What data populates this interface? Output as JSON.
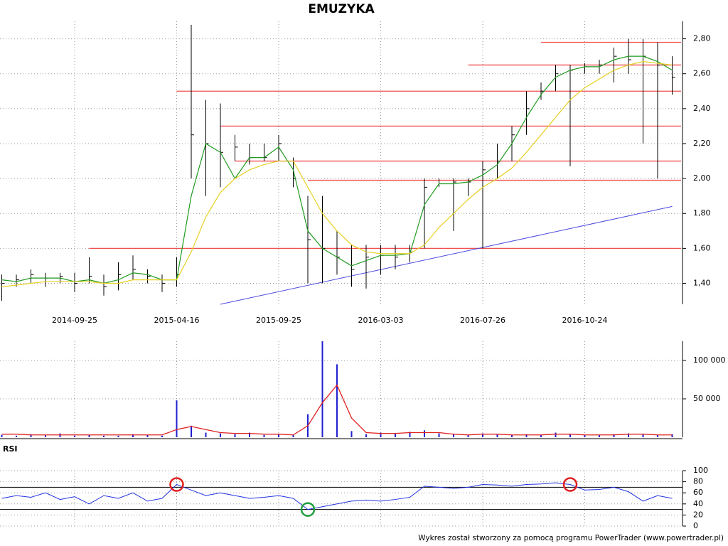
{
  "chart_data": [
    {
      "type": "ohlc",
      "title": "EMUZYKA",
      "x": [
        "2014-04-24",
        "2014-05-22",
        "2014-06-20",
        "2014-07-21",
        "2014-08-22",
        "2014-09-25",
        "2014-10-23",
        "2014-11-21",
        "2014-12-19",
        "2015-01-22",
        "2015-02-19",
        "2015-03-19",
        "2015-04-16",
        "2015-05-08",
        "2015-06-01",
        "2015-06-23",
        "2015-07-15",
        "2015-08-06",
        "2015-08-31",
        "2015-09-25",
        "2015-10-16",
        "2015-11-06",
        "2015-11-27",
        "2015-12-18",
        "2016-01-14",
        "2016-02-09",
        "2016-03-03",
        "2016-03-24",
        "2016-04-14",
        "2016-05-05",
        "2016-05-26",
        "2016-06-16",
        "2016-07-06",
        "2016-07-26",
        "2016-08-08",
        "2016-08-22",
        "2016-09-02",
        "2016-09-15",
        "2016-09-28",
        "2016-10-11",
        "2016-10-24",
        "2016-11-07",
        "2016-11-18",
        "2016-12-01",
        "2016-12-13",
        "2016-12-23",
        "2017-01-05"
      ],
      "high": [
        1.45,
        1.45,
        1.48,
        1.46,
        1.46,
        1.46,
        1.55,
        1.45,
        1.52,
        1.56,
        1.48,
        1.45,
        1.55,
        2.88,
        2.45,
        2.43,
        2.25,
        2.2,
        2.2,
        2.25,
        2.12,
        1.9,
        1.9,
        1.7,
        1.62,
        1.62,
        1.62,
        1.62,
        1.62,
        2.0,
        2.0,
        2.0,
        2.0,
        2.1,
        2.2,
        2.3,
        2.5,
        2.55,
        2.65,
        2.65,
        2.66,
        2.68,
        2.75,
        2.8,
        2.8,
        2.78,
        2.7
      ],
      "low": [
        1.3,
        1.38,
        1.4,
        1.38,
        1.4,
        1.35,
        1.4,
        1.33,
        1.36,
        1.42,
        1.4,
        1.35,
        1.38,
        2.0,
        1.9,
        1.95,
        2.1,
        2.08,
        2.1,
        2.1,
        1.95,
        1.4,
        1.4,
        1.45,
        1.38,
        1.37,
        1.45,
        1.48,
        1.52,
        1.6,
        1.95,
        1.7,
        1.9,
        1.6,
        2.0,
        2.1,
        2.25,
        2.45,
        2.5,
        2.07,
        2.6,
        2.6,
        2.55,
        2.6,
        2.2,
        2.0,
        2.48
      ],
      "close": [
        1.4,
        1.42,
        1.45,
        1.43,
        1.44,
        1.4,
        1.44,
        1.38,
        1.45,
        1.48,
        1.44,
        1.4,
        1.45,
        2.25,
        2.2,
        2.15,
        2.18,
        2.12,
        2.12,
        2.2,
        2.0,
        1.65,
        1.6,
        1.55,
        1.48,
        1.55,
        1.56,
        1.55,
        1.58,
        1.95,
        1.97,
        1.98,
        1.98,
        2.05,
        2.1,
        2.25,
        2.4,
        2.5,
        2.6,
        2.62,
        2.64,
        2.65,
        2.7,
        2.68,
        2.7,
        2.65,
        2.58
      ],
      "bar_color": "#000000",
      "ma": [
        {
          "color": "#1f9a1f",
          "values": [
            1.42,
            1.41,
            1.43,
            1.43,
            1.43,
            1.41,
            1.42,
            1.4,
            1.42,
            1.46,
            1.45,
            1.42,
            1.42,
            1.9,
            2.2,
            2.15,
            2.0,
            2.12,
            2.12,
            2.18,
            2.05,
            1.7,
            1.6,
            1.55,
            1.5,
            1.53,
            1.56,
            1.56,
            1.57,
            1.85,
            1.97,
            1.97,
            1.98,
            2.02,
            2.08,
            2.2,
            2.35,
            2.48,
            2.58,
            2.62,
            2.64,
            2.64,
            2.68,
            2.7,
            2.7,
            2.67,
            2.62
          ]
        },
        {
          "color": "#e6d020",
          "values": [
            1.38,
            1.39,
            1.4,
            1.41,
            1.41,
            1.41,
            1.41,
            1.4,
            1.4,
            1.42,
            1.42,
            1.42,
            1.42,
            1.58,
            1.78,
            1.92,
            2.0,
            2.05,
            2.08,
            2.1,
            2.1,
            1.95,
            1.8,
            1.7,
            1.62,
            1.58,
            1.57,
            1.57,
            1.57,
            1.62,
            1.72,
            1.8,
            1.88,
            1.95,
            2.0,
            2.06,
            2.15,
            2.25,
            2.35,
            2.45,
            2.52,
            2.57,
            2.62,
            2.65,
            2.67,
            2.66,
            2.65
          ]
        }
      ],
      "levels": [
        {
          "value": 1.6,
          "from": "2014-10-23"
        },
        {
          "value": 1.99,
          "from": "2015-11-06"
        },
        {
          "value": 2.1,
          "from": "2015-07-15"
        },
        {
          "value": 2.3,
          "from": "2015-06-23"
        },
        {
          "value": 2.5,
          "from": "2015-04-16"
        },
        {
          "value": 2.65,
          "from": "2016-07-06"
        },
        {
          "value": 2.78,
          "from": "2016-09-15"
        }
      ],
      "level_color": "#f05050",
      "trend": {
        "from": "2015-06-23",
        "from_value": 1.28,
        "to": "2017-01-05",
        "to_value": 1.84,
        "color": "#4a4ae0"
      },
      "ylim": [
        1.28,
        2.9
      ],
      "yticks": [
        {
          "value": 1.4,
          "label": "1,40"
        },
        {
          "value": 1.6,
          "label": "1,60"
        },
        {
          "value": 1.8,
          "label": "1,80"
        },
        {
          "value": 2.0,
          "label": "2,00"
        },
        {
          "value": 2.2,
          "label": "2,20"
        },
        {
          "value": 2.4,
          "label": "2,40"
        },
        {
          "value": 2.6,
          "label": "2,60"
        },
        {
          "value": 2.8,
          "label": "2,80"
        }
      ],
      "xticks": [
        "2014-09-25",
        "2015-04-16",
        "2015-09-25",
        "2016-03-03",
        "2016-07-26",
        "2016-10-24"
      ],
      "grid": true
    },
    {
      "type": "volume",
      "values": [
        3000,
        2000,
        4000,
        3000,
        5000,
        2000,
        3000,
        2000,
        2000,
        4000,
        3000,
        2000,
        48000,
        15000,
        6000,
        5000,
        4000,
        6000,
        3000,
        4000,
        3000,
        30000,
        125000,
        95000,
        8000,
        4000,
        6000,
        5000,
        7000,
        9000,
        5000,
        4000,
        3000,
        5000,
        4000,
        3000,
        4000,
        3000,
        6000,
        4000,
        3000,
        3000,
        4000,
        5000,
        4000,
        3000,
        4000
      ],
      "color": "#2020d0",
      "ma": {
        "color": "#e02020",
        "values": [
          4000,
          4000,
          3000,
          3000,
          3000,
          3000,
          3000,
          3000,
          3000,
          3000,
          3000,
          3000,
          10000,
          14000,
          10000,
          6000,
          5000,
          5000,
          4000,
          4000,
          3000,
          15000,
          45000,
          68000,
          25000,
          6000,
          5000,
          5000,
          6000,
          6000,
          6000,
          4000,
          3000,
          4000,
          4000,
          3000,
          3000,
          3000,
          4000,
          4000,
          3000,
          3000,
          3000,
          4000,
          4000,
          3000,
          3000
        ]
      },
      "ylim": [
        0,
        125000
      ],
      "yticks": [
        {
          "value": 50000,
          "label": "50 000"
        },
        {
          "value": 100000,
          "label": "100 000"
        }
      ],
      "grid": true
    },
    {
      "type": "rsi",
      "title": "RSI",
      "values": [
        50,
        55,
        52,
        60,
        48,
        53,
        40,
        55,
        50,
        60,
        45,
        50,
        75,
        65,
        55,
        60,
        55,
        50,
        52,
        55,
        50,
        30,
        35,
        40,
        45,
        47,
        45,
        48,
        52,
        72,
        70,
        68,
        70,
        75,
        74,
        72,
        75,
        76,
        78,
        75,
        65,
        66,
        70,
        62,
        45,
        55,
        50
      ],
      "color": "#2030e0",
      "reference_lines": [
        30,
        70
      ],
      "signals": [
        {
          "at": "2015-04-16",
          "color": "#e02020"
        },
        {
          "at": "2015-11-06",
          "color": "#20a040"
        },
        {
          "at": "2016-10-11",
          "color": "#e02020"
        }
      ],
      "ylim": [
        0,
        100
      ],
      "yticks": [
        0,
        20,
        40,
        60,
        80,
        100
      ],
      "grid": true
    }
  ],
  "footer": "Wykres został stworzony za pomocą programu PowerTrader (www.powertrader.pl)"
}
